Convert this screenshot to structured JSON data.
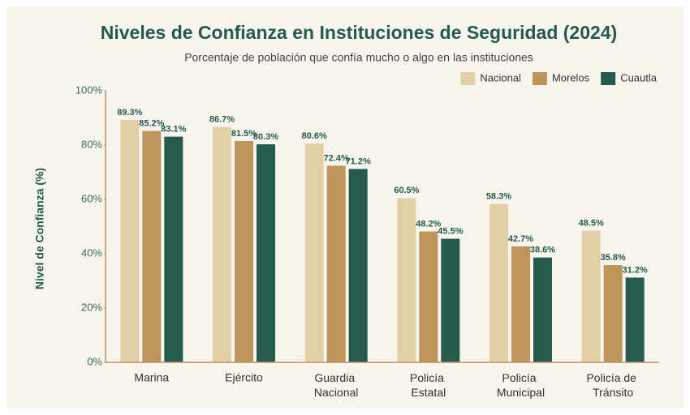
{
  "chart_data": {
    "type": "bar",
    "title": "Niveles de Confianza en Instituciones de Seguridad (2024)",
    "subtitle": "Porcentaje de población que confía mucho o algo en las instituciones",
    "y_label": "Nivel de Confianza (%)",
    "categories": [
      "Marina",
      "Ejército",
      "Guardia Nacional",
      "Policía Estatal",
      "Policía Municipal",
      "Policía de Tránsito"
    ],
    "series": [
      {
        "name": "Nacional",
        "color": "#e3cfa5",
        "values": [
          89.3,
          86.7,
          80.6,
          60.5,
          58.3,
          48.5
        ],
        "value_labels": [
          "89.3%",
          "86.7%",
          "80.6%",
          "60.5%",
          "58.3%",
          "48.5%"
        ]
      },
      {
        "name": "Morelos",
        "color": "#bd955c",
        "values": [
          85.2,
          81.5,
          72.4,
          48.2,
          42.7,
          35.8
        ],
        "value_labels": [
          "85.2%",
          "81.5%",
          "72.4%",
          "48.2%",
          "42.7%",
          "35.8%"
        ]
      },
      {
        "name": "Cuautla",
        "color": "#245b4c",
        "values": [
          83.1,
          80.3,
          71.2,
          45.5,
          38.6,
          31.2
        ],
        "value_labels": [
          "83.1%",
          "80.3%",
          "71.2%",
          "45.5%",
          "38.6%",
          "31.2%"
        ]
      }
    ],
    "ylim": [
      0,
      100
    ],
    "yticks": [
      {
        "value": 0,
        "label": "0%"
      },
      {
        "value": 20,
        "label": "20%"
      },
      {
        "value": 40,
        "label": "40%"
      },
      {
        "value": 60,
        "label": "60%"
      },
      {
        "value": 80,
        "label": "80%"
      },
      {
        "value": 100,
        "label": "100%"
      }
    ],
    "grid": false,
    "legend": "top-right"
  }
}
